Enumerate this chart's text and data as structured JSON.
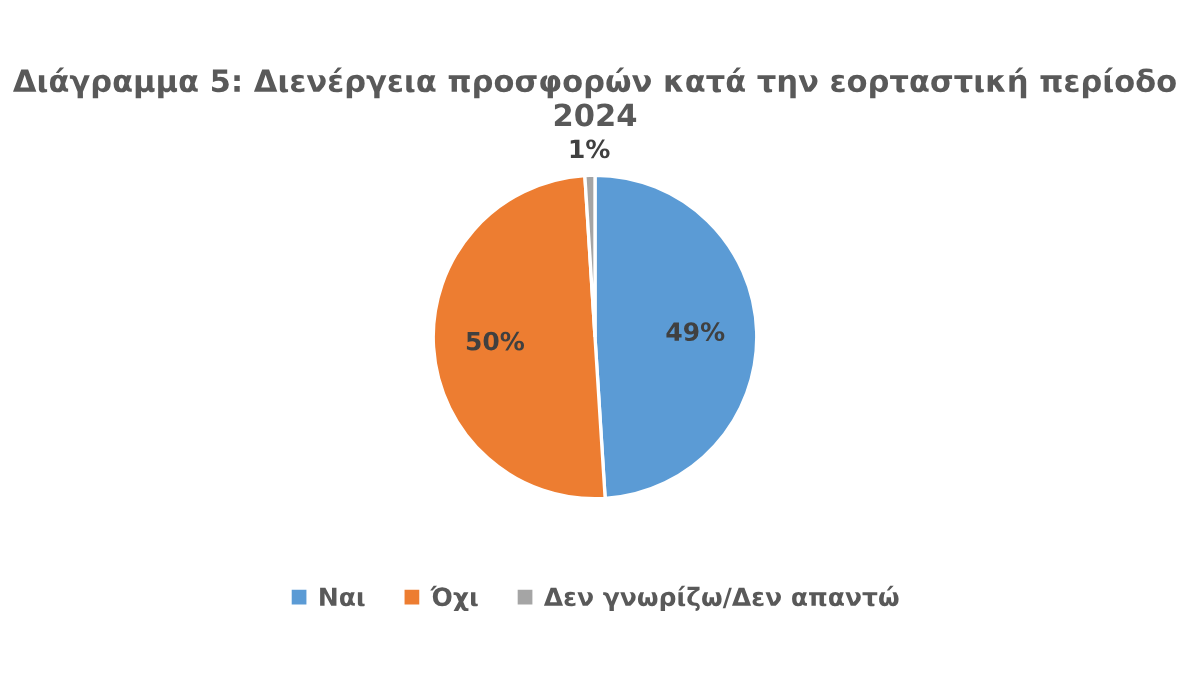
{
  "chart_data": {
    "type": "pie",
    "title": "Διάγραμμα 5: Διενέργεια προσφορών κατά την εορταστική περίοδο 2024",
    "categories": [
      "Ναι",
      "Όχι",
      "Δεν γνωρίζω/Δεν απαντώ"
    ],
    "values": [
      49,
      50,
      1
    ],
    "colors": [
      "#5b9bd5",
      "#ed7d31",
      "#a5a5a5"
    ],
    "value_labels": [
      "49%",
      "50%",
      "1%"
    ],
    "legend": "bottom"
  }
}
